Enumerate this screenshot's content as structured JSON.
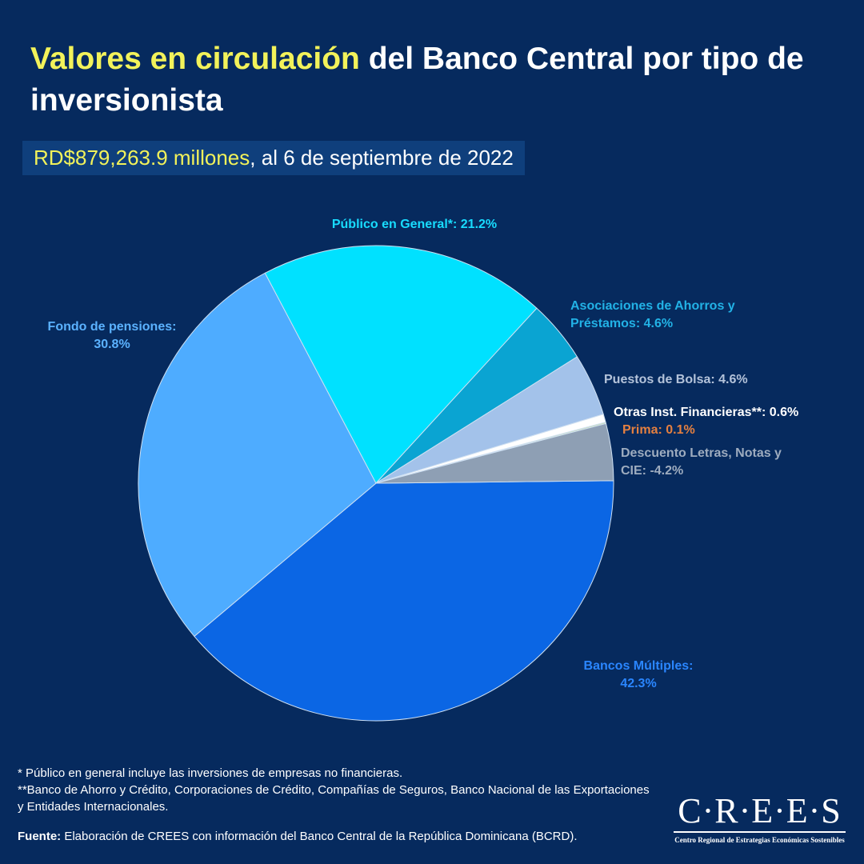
{
  "chart_data": {
    "type": "pie",
    "title": {
      "highlight": "Valores en circulación",
      "rest": "del Banco Central por tipo de inversionista"
    },
    "subtitle": {
      "highlight": "RD$879,263.9 millones",
      "rest": ", al 6 de septiembre de 2022"
    },
    "categories": [
      "Bancos Múltiples:",
      "Fondo de pensiones:",
      "Público en General*:",
      "Asociaciones de Ahorros y Préstamos:",
      "Puestos de Bolsa:",
      "Otras Inst. Financieras**:",
      "Prima:",
      "Descuento Letras, Notas y CIE:"
    ],
    "values": [
      42.3,
      30.8,
      21.2,
      4.6,
      4.6,
      0.6,
      0.1,
      -4.2
    ],
    "value_labels": [
      "42.3%",
      "30.8%",
      "21.2%",
      "4.6%",
      "4.6%",
      "0.6%",
      "0.1%",
      "-4.2%"
    ],
    "colors": [
      "#0b66e4",
      "#4eacff",
      "#00e1ff",
      "#0aa4d2",
      "#a3c2ea",
      "#ffffff",
      "#c8dc9a",
      "#8e9fb4"
    ]
  },
  "footnotes": [
    "* Público en general incluye las inversiones de empresas no financieras.",
    "**Banco de Ahorro y Crédito, Corporaciones de Crédito, Compañías de Seguros, Banco Nacional de las Exportaciones y Entidades Internacionales."
  ],
  "source": {
    "label": "Fuente:",
    "text": "Elaboración de CREES con información del Banco Central de la República Dominicana (BCRD)."
  },
  "logo": {
    "name": "C·R·E·E·S",
    "tagline": "Centro Regional de Estrategias Económicas Sostenibles"
  }
}
